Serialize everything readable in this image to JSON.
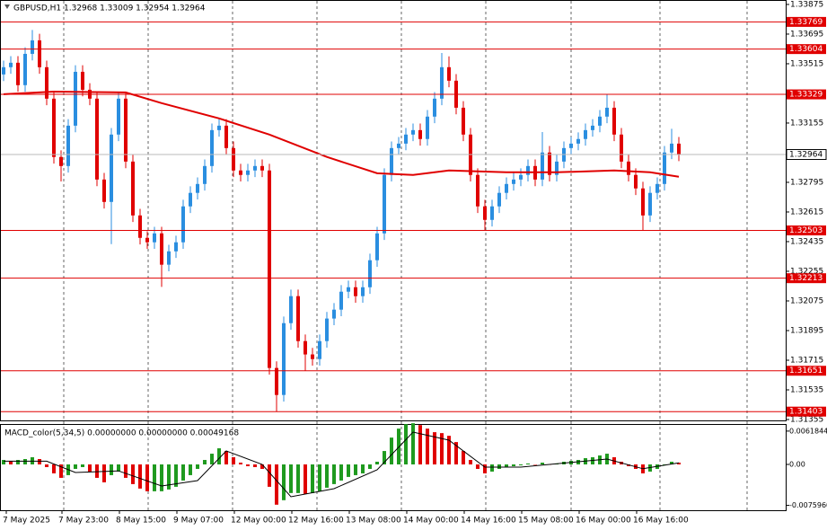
{
  "chart_data": {
    "type": "candlestick",
    "title": "GBPUSD,H1  1.32968 1.33009 1.32954 1.32964",
    "up_color": "#2a8ee0",
    "down_color": "#e00000",
    "open": [
      1.3345,
      1.33494,
      1.33521,
      1.33385,
      1.33575,
      1.33657,
      1.33494,
      1.33303,
      1.32949,
      1.32894,
      1.33139,
      1.33466,
      1.33357,
      1.33303,
      1.32812,
      1.32676,
      1.33085,
      1.33303,
      1.32921,
      1.32594,
      1.32458,
      1.32431,
      1.32485,
      1.32295,
      1.32376,
      1.32431,
      1.32649,
      1.32731,
      1.32785,
      1.32894,
      1.33112,
      1.33139,
      1.33003,
      1.32867,
      1.3284,
      1.32867,
      1.32894,
      1.32867,
      1.31668,
      1.31504,
      1.3194,
      1.32104,
      1.31831,
      1.3175,
      1.31722,
      1.31831,
      1.31968,
      1.32022,
      1.32131,
      1.32158,
      1.32104,
      1.32158,
      1.32322,
      1.32485,
      1.3284,
      1.33003,
      1.3303,
      1.33085,
      1.33112,
      1.33058,
      1.33194,
      1.33303,
      1.33494,
      1.33412,
      1.33248,
      1.33085,
      1.3284,
      1.32649,
      1.32567,
      1.32649,
      1.32731,
      1.32785,
      1.32812,
      1.3284,
      1.32894,
      1.32812,
      1.32976,
      1.3284,
      1.32921,
      1.33003,
      1.3303,
      1.33058,
      1.33112,
      1.33139,
      1.33194,
      1.33248,
      1.33085,
      1.32921,
      1.3284,
      1.32758,
      1.32594,
      1.32731,
      1.32785,
      1.32976,
      1.3303
    ],
    "high": [
      1.33534,
      1.33561,
      1.33561,
      1.33615,
      1.3372,
      1.33697,
      1.33534,
      1.33343,
      1.32989,
      1.33179,
      1.33506,
      1.33506,
      1.33397,
      1.33343,
      1.32852,
      1.33125,
      1.33343,
      1.33343,
      1.32961,
      1.32634,
      1.32498,
      1.32525,
      1.32525,
      1.32416,
      1.32471,
      1.32689,
      1.32771,
      1.32825,
      1.32934,
      1.33152,
      1.33179,
      1.33179,
      1.33043,
      1.32907,
      1.32907,
      1.32934,
      1.32934,
      1.32907,
      1.31708,
      1.3198,
      1.32144,
      1.32144,
      1.31871,
      1.3179,
      1.31871,
      1.32008,
      1.32062,
      1.32171,
      1.32198,
      1.32198,
      1.32198,
      1.32362,
      1.32525,
      1.3288,
      1.33043,
      1.3307,
      1.33125,
      1.33152,
      1.33152,
      1.33234,
      1.33343,
      1.3358,
      1.3356,
      1.33452,
      1.33288,
      1.33125,
      1.3288,
      1.32689,
      1.32689,
      1.32771,
      1.32825,
      1.32852,
      1.3288,
      1.32934,
      1.32934,
      1.331,
      1.33016,
      1.32961,
      1.33043,
      1.3307,
      1.33098,
      1.33152,
      1.33179,
      1.33234,
      1.33329,
      1.33288,
      1.33125,
      1.32961,
      1.3288,
      1.32798,
      1.32771,
      1.32825,
      1.33016,
      1.3312,
      1.3307
    ],
    "low": [
      1.3341,
      1.33454,
      1.33345,
      1.33345,
      1.33535,
      1.33454,
      1.33263,
      1.32909,
      1.328,
      1.32854,
      1.33099,
      1.33317,
      1.33263,
      1.32772,
      1.32636,
      1.3242,
      1.33045,
      1.32881,
      1.32554,
      1.32418,
      1.32391,
      1.32391,
      1.3216,
      1.32255,
      1.32336,
      1.32391,
      1.32609,
      1.32691,
      1.32745,
      1.32854,
      1.33072,
      1.32963,
      1.32827,
      1.328,
      1.328,
      1.32827,
      1.32827,
      1.31628,
      1.31403,
      1.31464,
      1.319,
      1.31791,
      1.31651,
      1.31682,
      1.31682,
      1.31791,
      1.31928,
      1.31982,
      1.32091,
      1.32064,
      1.32064,
      1.32118,
      1.32282,
      1.32445,
      1.328,
      1.32963,
      1.3299,
      1.33045,
      1.33018,
      1.33018,
      1.33154,
      1.33263,
      1.33372,
      1.33208,
      1.33045,
      1.328,
      1.32609,
      1.32503,
      1.32527,
      1.32609,
      1.32691,
      1.32745,
      1.32772,
      1.328,
      1.32772,
      1.32772,
      1.328,
      1.328,
      1.32881,
      1.32963,
      1.3299,
      1.33018,
      1.33072,
      1.33099,
      1.33154,
      1.33045,
      1.32881,
      1.328,
      1.32718,
      1.32503,
      1.32554,
      1.32691,
      1.32745,
      1.32936,
      1.32924
    ],
    "close": [
      1.33494,
      1.33521,
      1.33385,
      1.33575,
      1.33657,
      1.33494,
      1.33303,
      1.32949,
      1.32894,
      1.33139,
      1.33466,
      1.33357,
      1.33303,
      1.32812,
      1.32676,
      1.33085,
      1.33303,
      1.32921,
      1.32594,
      1.32458,
      1.32431,
      1.32485,
      1.32295,
      1.32376,
      1.32431,
      1.32649,
      1.32731,
      1.32785,
      1.32894,
      1.33112,
      1.33139,
      1.33003,
      1.32867,
      1.3284,
      1.32867,
      1.32894,
      1.32867,
      1.31668,
      1.31504,
      1.3194,
      1.32104,
      1.31831,
      1.3175,
      1.31722,
      1.31831,
      1.31968,
      1.32022,
      1.32131,
      1.32158,
      1.32104,
      1.32158,
      1.32322,
      1.32485,
      1.3284,
      1.33003,
      1.3303,
      1.33085,
      1.33112,
      1.33058,
      1.33194,
      1.33303,
      1.33494,
      1.33412,
      1.33248,
      1.33085,
      1.3284,
      1.32649,
      1.32567,
      1.32649,
      1.32731,
      1.32785,
      1.32812,
      1.3284,
      1.32894,
      1.32812,
      1.32976,
      1.3284,
      1.32921,
      1.33003,
      1.3303,
      1.33058,
      1.33112,
      1.33139,
      1.33194,
      1.33248,
      1.33085,
      1.32921,
      1.3284,
      1.32758,
      1.32594,
      1.32731,
      1.32785,
      1.32976,
      1.3303,
      1.32964
    ],
    "ylim": [
      1.31355,
      1.33902
    ],
    "yticks": [
      1.33875,
      1.33695,
      1.33515,
      1.33155,
      1.32795,
      1.32615,
      1.32435,
      1.32255,
      1.32075,
      1.31895,
      1.31715,
      1.31535,
      1.31355
    ],
    "levels": [
      1.33769,
      1.33604,
      1.33329,
      1.32503,
      1.32213,
      1.31651,
      1.31403
    ],
    "level_color": "#e00000",
    "last_price": 1.32964,
    "ma": {
      "color": "#e00000",
      "x": [
        0,
        7,
        17,
        22,
        30,
        37,
        45,
        52,
        57,
        62,
        70,
        77,
        85,
        90,
        94
      ],
      "values": [
        1.3333,
        1.33346,
        1.33341,
        1.33276,
        1.33183,
        1.33085,
        1.32949,
        1.3285,
        1.3284,
        1.32867,
        1.32856,
        1.32856,
        1.32867,
        1.32856,
        1.32829
      ]
    },
    "x_labels": [
      "7 May 2025",
      "7 May 23:00",
      "8 May 15:00",
      "9 May 07:00",
      "12 May 00:00",
      "12 May 16:00",
      "13 May 08:00",
      "14 May 00:00",
      "14 May 16:00",
      "15 May 08:00",
      "16 May 00:00",
      "16 May 16:00"
    ],
    "macd": {
      "title": "MACD_color(5,34,5) 0.00000000 0.00000000 0.00049168",
      "up_color": "#1f9a1f",
      "down_color": "#e00000",
      "signal_color": "#000000",
      "values": [
        0.00083,
        0.00066,
        0.00083,
        0.001,
        0.00133,
        0.001,
        -0.0005,
        -0.00166,
        -0.00249,
        -0.00199,
        -0.00083,
        -0.0005,
        -0.00133,
        -0.00249,
        -0.00332,
        -0.00199,
        -0.00133,
        -0.00249,
        -0.00365,
        -0.00448,
        -0.00498,
        -0.00498,
        -0.00498,
        -0.00465,
        -0.00415,
        -0.00299,
        -0.00199,
        -0.00083,
        0.00083,
        0.00199,
        0.00299,
        0.00249,
        0.00133,
        0.00033,
        -0.00033,
        -0.0005,
        -0.00083,
        -0.00415,
        -0.00747,
        -0.00664,
        -0.00531,
        -0.00531,
        -0.00548,
        -0.00531,
        -0.00498,
        -0.00432,
        -0.00365,
        -0.00299,
        -0.00232,
        -0.00199,
        -0.00166,
        -0.00083,
        0.0005,
        0.00249,
        0.00498,
        0.00664,
        0.00747,
        0.00764,
        0.0073,
        0.00664,
        0.00598,
        0.00581,
        0.00531,
        0.00415,
        0.00249,
        0.00083,
        -0.00083,
        -0.00166,
        -0.00133,
        -0.00083,
        -0.0005,
        -0.00033,
        -0.00017,
        0.00017,
        0,
        0.00033,
        0,
        0.00017,
        0.0005,
        0.00066,
        0.00083,
        0.00116,
        0.00133,
        0.00166,
        0.00199,
        0.00133,
        0.0005,
        -0.00033,
        -0.00083,
        -0.00166,
        -0.00133,
        -0.00083,
        0,
        0.0005,
        0.00033
      ],
      "signal": {
        "x": [
          0,
          6,
          10,
          16,
          22,
          27,
          31,
          36,
          40,
          46,
          52,
          57,
          62,
          67,
          72,
          84,
          89,
          94
        ],
        "values": [
          0.0006,
          0.0006,
          -0.0015,
          -0.0012,
          -0.004,
          -0.003,
          0.0025,
          0,
          -0.006,
          -0.0045,
          -0.001,
          0.006,
          0.0045,
          -0.0005,
          -0.0005,
          0.001,
          -0.0008,
          0.0003
        ]
      },
      "ylim": [
        -0.0085,
        0.007
      ],
      "yticks": [
        0.0061844,
        {
          "value": 0,
          "label": "0.00"
        },
        {
          "value": -0.007596,
          "label": "-0.0075960"
        }
      ]
    }
  }
}
